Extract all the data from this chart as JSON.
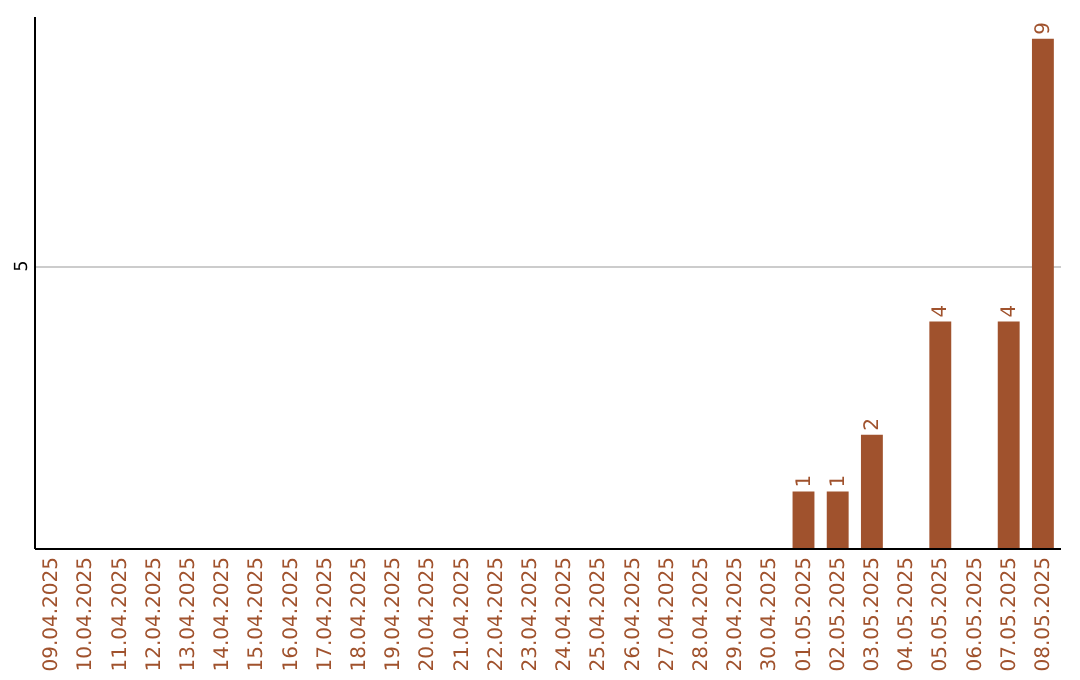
{
  "chart_data": {
    "type": "bar",
    "categories": [
      "09.04.2025",
      "10.04.2025",
      "11.04.2025",
      "12.04.2025",
      "13.04.2025",
      "14.04.2025",
      "15.04.2025",
      "16.04.2025",
      "17.04.2025",
      "18.04.2025",
      "19.04.2025",
      "20.04.2025",
      "21.04.2025",
      "22.04.2025",
      "23.04.2025",
      "24.04.2025",
      "25.04.2025",
      "26.04.2025",
      "27.04.2025",
      "28.04.2025",
      "29.04.2025",
      "30.04.2025",
      "01.05.2025",
      "02.05.2025",
      "03.05.2025",
      "04.05.2025",
      "05.05.2025",
      "06.05.2025",
      "07.05.2025",
      "08.05.2025"
    ],
    "values": [
      null,
      null,
      null,
      null,
      null,
      null,
      null,
      null,
      null,
      null,
      null,
      null,
      null,
      null,
      null,
      null,
      null,
      null,
      null,
      null,
      null,
      null,
      1,
      1,
      2,
      null,
      4,
      null,
      4,
      9
    ],
    "data_labels": true,
    "color": "#a0522d",
    "ylim": [
      0,
      9.4
    ],
    "yticks": [
      5
    ],
    "grid": "y"
  }
}
